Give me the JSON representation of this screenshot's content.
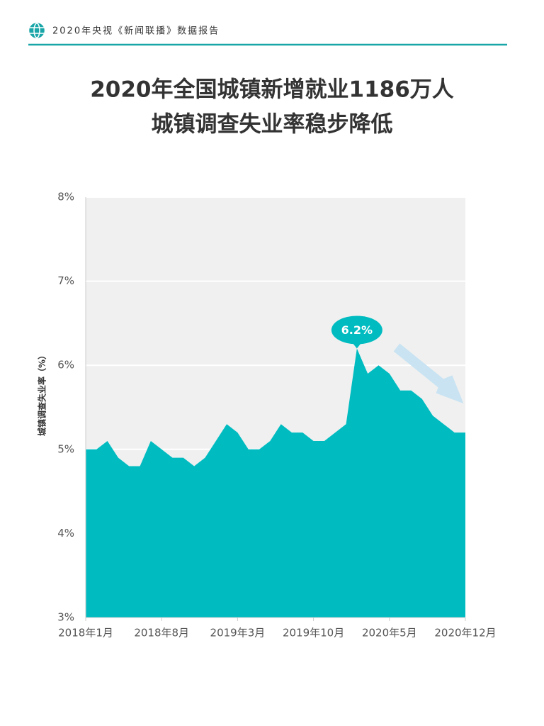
{
  "header": {
    "text": "2020年央视《新闻联播》数据报告"
  },
  "chart_data": {
    "type": "area",
    "title": [
      "2020年全国城镇新增就业1186万人",
      "城镇调查失业率稳步降低"
    ],
    "y_label": "城镇调查失业率（%）",
    "categories": [
      "2018年1月",
      null,
      null,
      null,
      null,
      null,
      null,
      "2018年8月",
      null,
      null,
      null,
      null,
      null,
      null,
      "2019年3月",
      null,
      null,
      null,
      null,
      null,
      null,
      "2019年10月",
      null,
      null,
      null,
      null,
      null,
      null,
      "2020年5月",
      null,
      null,
      null,
      null,
      null,
      null,
      "2020年12月"
    ],
    "values": [
      5.0,
      5.0,
      5.1,
      4.9,
      4.8,
      4.8,
      5.1,
      5.0,
      4.9,
      4.9,
      4.8,
      4.9,
      5.1,
      5.3,
      5.2,
      5.0,
      5.0,
      5.1,
      5.3,
      5.2,
      5.2,
      5.1,
      5.1,
      5.2,
      5.3,
      6.2,
      5.9,
      6.0,
      5.9,
      5.7,
      5.7,
      5.6,
      5.4,
      5.3,
      5.2,
      5.2
    ],
    "value_labels": [
      null,
      null,
      null,
      null,
      null,
      null,
      null,
      null,
      null,
      null,
      null,
      null,
      null,
      null,
      null,
      null,
      null,
      null,
      null,
      null,
      null,
      null,
      null,
      null,
      null,
      "6.2%",
      null,
      null,
      null,
      null,
      null,
      null,
      null,
      null,
      null,
      null
    ],
    "color": "#00bcc1",
    "ylim": [
      3,
      8
    ],
    "yticks": [
      {
        "value": 3,
        "label": "3%"
      },
      {
        "value": 4,
        "label": "4%"
      },
      {
        "value": 5,
        "label": "5%"
      },
      {
        "value": 6,
        "label": "6%"
      },
      {
        "value": 7,
        "label": "7%"
      },
      {
        "value": 8,
        "label": "8%"
      }
    ],
    "grid": true
  }
}
